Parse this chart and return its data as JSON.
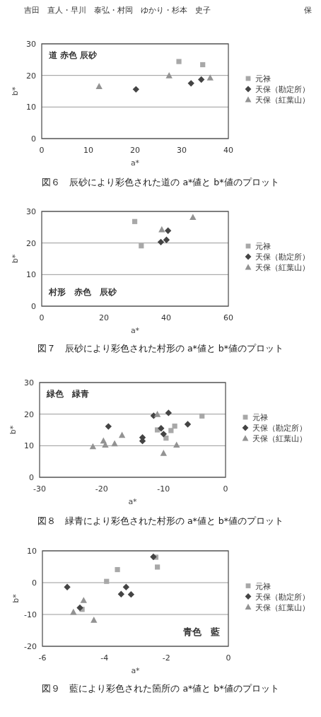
{
  "chart_data": [
    {
      "type": "scatter",
      "xlabel": "a*",
      "ylabel": "b*",
      "xlim": [
        0,
        40
      ],
      "ylim": [
        0,
        30
      ],
      "xticks": [
        0,
        10,
        20,
        30,
        40
      ],
      "yticks": [
        0,
        10,
        20,
        30
      ],
      "grid": "y",
      "legend": "right",
      "annotations": [
        "道 赤色 辰砂",
        "図６　辰砂により彩色された道の a*値と b*値のプロット",
        "吉田　直人・早川　泰弘・村岡　ゆかり・杉本　史子　　　　　　　　　　　　保"
      ],
      "series": [
        {
          "name": "元禄",
          "color": "#a8a8a8",
          "marker": "square",
          "x": [
            29.4,
            34.5
          ],
          "values": [
            24.4,
            23.4
          ]
        },
        {
          "name": "天保（勘定所）",
          "color": "#444444",
          "marker": "diamond",
          "x": [
            20.2,
            32.0,
            34.2
          ],
          "values": [
            15.6,
            17.5,
            18.7
          ]
        },
        {
          "name": "天保（紅葉山）",
          "color": "#939393",
          "marker": "triangle",
          "x": [
            12.3,
            27.3,
            36.1
          ],
          "values": [
            16.5,
            19.9,
            19.2
          ]
        }
      ]
    },
    {
      "type": "scatter",
      "xlabel": "a*",
      "ylabel": "b*",
      "xlim": [
        0,
        60
      ],
      "ylim": [
        0,
        30
      ],
      "xticks": [
        0,
        20,
        40,
        60
      ],
      "yticks": [
        0,
        10,
        20,
        30
      ],
      "grid": "y",
      "legend": "right",
      "annotations": [
        "村形　赤色　辰砂",
        "図７　辰砂により彩色された村形の a*値と b*値のプロット"
      ],
      "series": [
        {
          "name": "元禄",
          "color": "#a8a8a8",
          "marker": "square",
          "x": [
            29.9,
            32.0
          ],
          "values": [
            26.8,
            19.1
          ]
        },
        {
          "name": "天保（勘定所）",
          "color": "#444444",
          "marker": "diamond",
          "x": [
            38.3,
            40.1,
            40.6
          ],
          "values": [
            20.3,
            21.0,
            23.9
          ]
        },
        {
          "name": "天保（紅葉山）",
          "color": "#939393",
          "marker": "triangle",
          "x": [
            38.6,
            48.6
          ],
          "values": [
            24.2,
            28.1
          ]
        }
      ]
    },
    {
      "type": "scatter",
      "xlabel": "a*",
      "ylabel": "b*",
      "xlim": [
        -30,
        0
      ],
      "ylim": [
        0,
        30
      ],
      "xticks": [
        -30,
        -20,
        -10,
        0
      ],
      "yticks": [
        0,
        10,
        20,
        30
      ],
      "grid": "y",
      "legend": "right",
      "annotations": [
        "緑色　緑青",
        "図８　緑青により彩色された村形の a*値と b*値のプロット"
      ],
      "series": [
        {
          "name": "元禄",
          "color": "#a8a8a8",
          "marker": "square",
          "x": [
            -11.0,
            -9.6,
            -8.8,
            -8.2,
            -3.8
          ],
          "values": [
            15.0,
            12.4,
            14.8,
            16.2,
            19.4
          ]
        },
        {
          "name": "天保（勘定所）",
          "color": "#444444",
          "marker": "diamond",
          "x": [
            -18.9,
            -13.4,
            -13.4,
            -11.6,
            -10.4,
            -10.0,
            -9.2,
            -6.1
          ],
          "values": [
            16.1,
            12.6,
            11.5,
            19.5,
            15.5,
            13.7,
            20.4,
            16.8
          ]
        },
        {
          "name": "天保（紅葉山）",
          "color": "#939393",
          "marker": "triangle",
          "x": [
            -21.4,
            -19.7,
            null,
            -19.4,
            -17.9,
            -16.7,
            -11.0,
            -10.0,
            -7.9
          ],
          "values": [
            9.7,
            11.5,
            null,
            10.2,
            10.6,
            13.3,
            19.9,
            7.6,
            10.2
          ]
        }
      ]
    },
    {
      "type": "scatter",
      "xlabel": "a*",
      "ylabel": "b*",
      "xlim": [
        -6,
        0
      ],
      "ylim": [
        -20,
        10
      ],
      "xticks": [
        -6,
        -4,
        -2,
        0
      ],
      "yticks": [
        -20,
        -10,
        0,
        10
      ],
      "grid": "y",
      "legend": "right",
      "annotations": [
        "青色　藍",
        "図９　藍により彩色された箇所の a*値と b*値のプロット"
      ],
      "series": [
        {
          "name": "元禄",
          "color": "#a8a8a8",
          "marker": "square",
          "x": [
            -2.34,
            -2.29,
            -3.58,
            -3.93,
            -4.72
          ],
          "values": [
            8.0,
            4.9,
            4.1,
            0.4,
            -8.4
          ]
        },
        {
          "name": "天保（勘定所）",
          "color": "#444444",
          "marker": "diamond",
          "x": [
            -5.2,
            -2.42,
            -3.3,
            -3.46,
            -3.14,
            -4.79
          ],
          "values": [
            -1.4,
            8.1,
            -1.4,
            -3.6,
            -3.7,
            -7.9
          ]
        },
        {
          "name": "天保（紅葉山）",
          "color": "#939393",
          "marker": "triangle",
          "x": [
            -4.67,
            -5.0,
            -4.34
          ],
          "values": [
            -5.6,
            -9.3,
            -11.8
          ]
        }
      ]
    }
  ]
}
